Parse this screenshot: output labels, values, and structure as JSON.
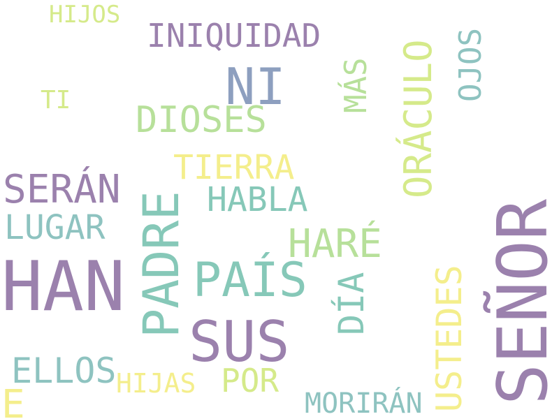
{
  "palette": {
    "purple": "#9b81ad",
    "slate": "#8d9fbf",
    "teal": "#86c8b8",
    "sea": "#8ec3c0",
    "lightgreen": "#b7e09a",
    "lime": "#d5ea8a",
    "yellow": "#f4ee8c"
  },
  "words": {
    "hijos": "HIJOS",
    "iniquidad": "INIQUIDAD",
    "ni": "NI",
    "ti": "TI",
    "dioses": "DIOSES",
    "mas": "MÁS",
    "oraculo": "ORÁCULO",
    "ojos": "OJOS",
    "tierra": "TIERRA",
    "seran": "SERÁN",
    "habla": "HABLA",
    "padre": "PADRE",
    "lugar": "LUGAR",
    "hare": "HARÉ",
    "senor": "SEÑOR",
    "han": "HAN",
    "pais": "PAÍS",
    "dia": "DÍA",
    "ustedes": "USTEDES",
    "sus": "SUS",
    "ellos": "ELLOS",
    "hijas": "HIJAS",
    "por": "POR",
    "moriran": "MORIRÁN",
    "e": "E"
  }
}
